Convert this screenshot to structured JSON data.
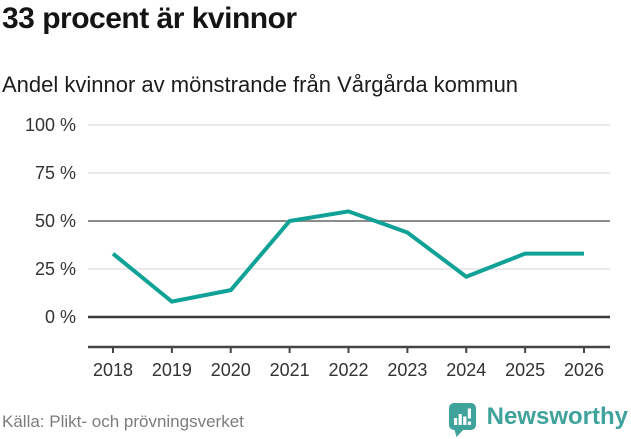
{
  "header": {
    "title": "33 procent är kvinnor",
    "subtitle": "Andel kvinnor av mönstrande från Vårgårda kommun"
  },
  "chart_data": {
    "type": "line",
    "title": "33 procent är kvinnor",
    "subtitle": "Andel kvinnor av mönstrande från Vårgårda kommun",
    "categories": [
      "2018",
      "2019",
      "2020",
      "2021",
      "2022",
      "2023",
      "2024",
      "2025",
      "2026"
    ],
    "series": [
      {
        "name": "Andel kvinnor av mönstrande",
        "values": [
          33,
          8,
          14,
          50,
          55,
          44,
          21,
          33,
          33
        ]
      }
    ],
    "unit": "%",
    "ylim": [
      0,
      100
    ],
    "yticks": [
      0,
      25,
      50,
      75,
      100
    ],
    "ytick_labels": [
      "0 %",
      "25 %",
      "50 %",
      "75 %",
      "100 %"
    ],
    "grid": "horizontal",
    "legend": "none",
    "line_color": "#10a296",
    "emphasized_gridline_value": 50,
    "baseline_gridline_value": 0
  },
  "footer": {
    "source": "Källa: Plikt- och prövningsverket",
    "brand": "Newsworthy",
    "brand_color": "#3fa29b"
  }
}
